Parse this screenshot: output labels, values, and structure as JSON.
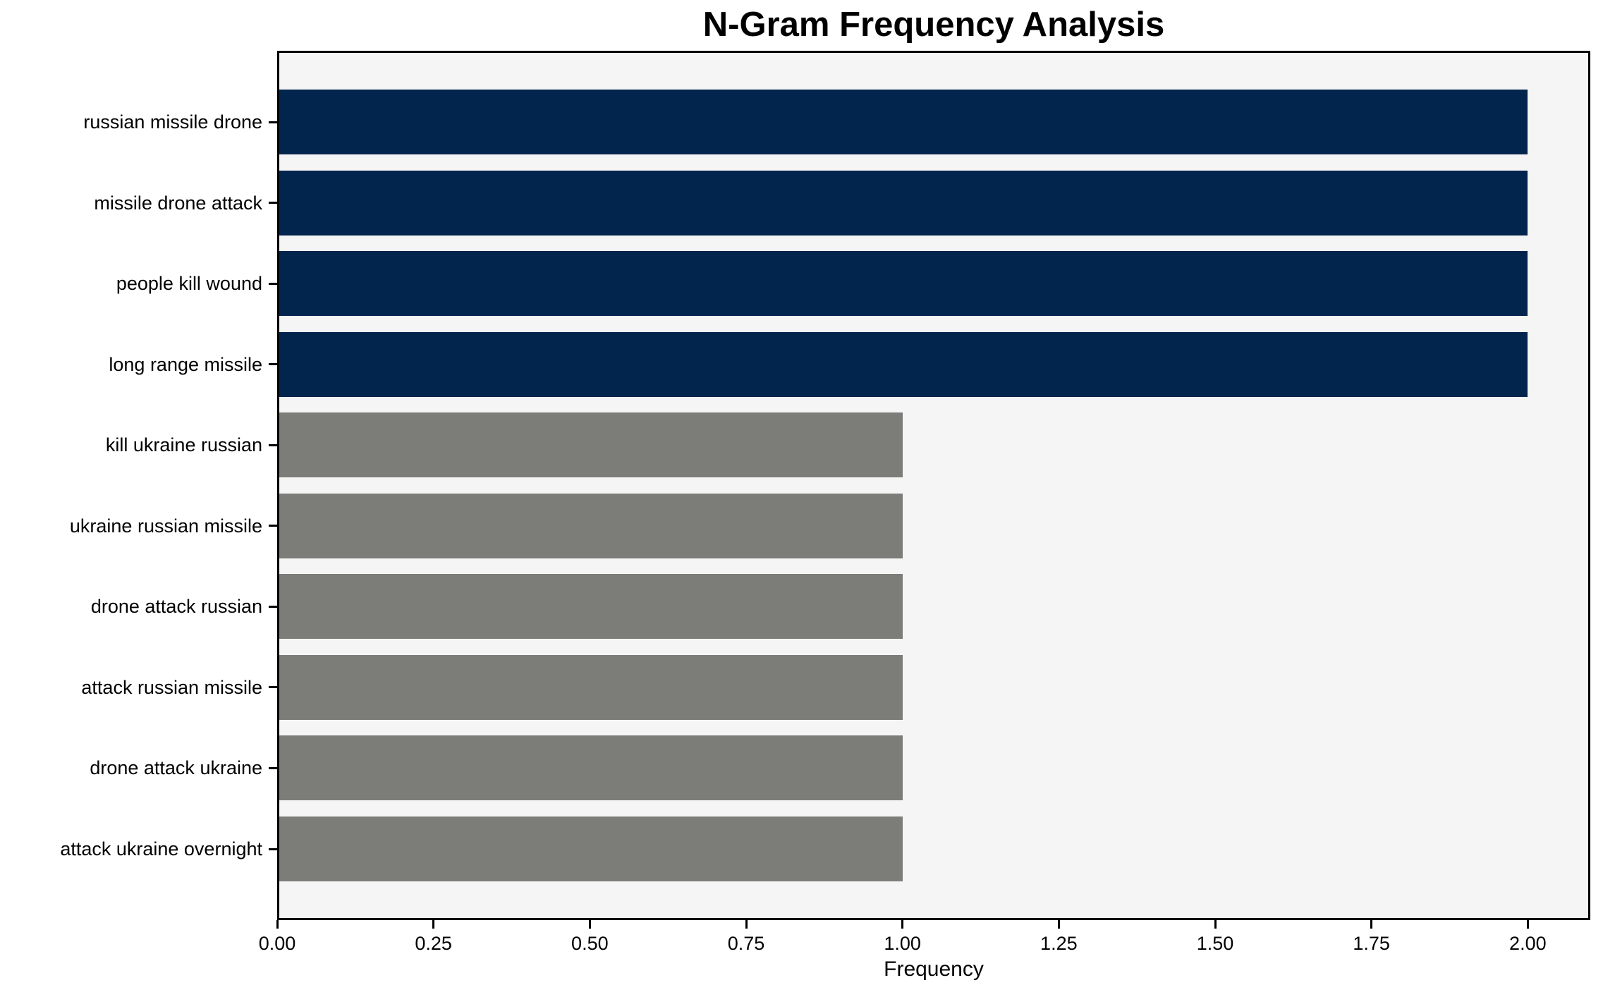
{
  "chart_data": {
    "type": "bar",
    "orientation": "horizontal",
    "title": "N-Gram Frequency Analysis",
    "xlabel": "Frequency",
    "ylabel": "",
    "categories": [
      "russian missile drone",
      "missile drone attack",
      "people kill wound",
      "long range missile",
      "kill ukraine russian",
      "ukraine russian missile",
      "drone attack russian",
      "attack russian missile",
      "drone attack ukraine",
      "attack ukraine overnight"
    ],
    "values": [
      2,
      2,
      2,
      2,
      1,
      1,
      1,
      1,
      1,
      1
    ],
    "bar_colors": [
      "#02254e",
      "#02254e",
      "#02254e",
      "#02254e",
      "#7c7c79",
      "#7c7c79",
      "#7c7c79",
      "#7c7c79",
      "#7c7c79",
      "#7c7c79"
    ],
    "x_tick_values": [
      0,
      0.25,
      0.5,
      0.75,
      1,
      1.25,
      1.5,
      1.75,
      2
    ],
    "x_tick_labels": [
      "0.00",
      "0.25",
      "0.50",
      "0.75",
      "1.00",
      "1.25",
      "1.50",
      "1.75",
      "2.00"
    ],
    "xlim": [
      0,
      2.1
    ],
    "grid": false,
    "legend": false,
    "colors": {
      "bar_high": "#02254e",
      "bar_low": "#7c7c79",
      "plot_background": "#f5f5f5",
      "figure_background": "#ffffff",
      "axis_line": "#000000",
      "text": "#000000"
    }
  }
}
